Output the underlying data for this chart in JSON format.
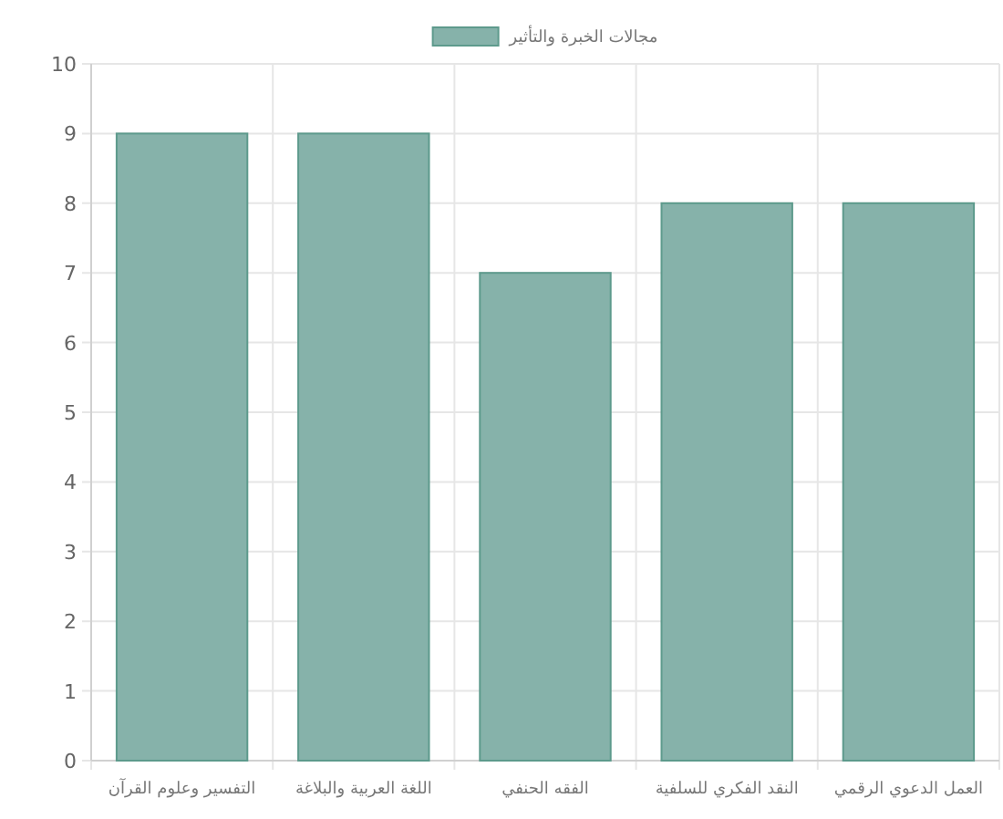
{
  "chart_data": {
    "type": "bar",
    "categories": [
      "التفسير وعلوم القرآن",
      "اللغة العربية والبلاغة",
      "الفقه الحنفي",
      "النقد الفكري للسلفية",
      "العمل الدعوي الرقمي"
    ],
    "series": [
      {
        "name": "مجالات الخبرة والتأثير",
        "color": "#86b2aa",
        "values": [
          9,
          9,
          7,
          8,
          8
        ]
      }
    ],
    "ylim": [
      0,
      10
    ],
    "yticks": [
      0,
      1,
      2,
      3,
      4,
      5,
      6,
      7,
      8,
      9,
      10
    ],
    "grid": true,
    "legend": "top"
  }
}
